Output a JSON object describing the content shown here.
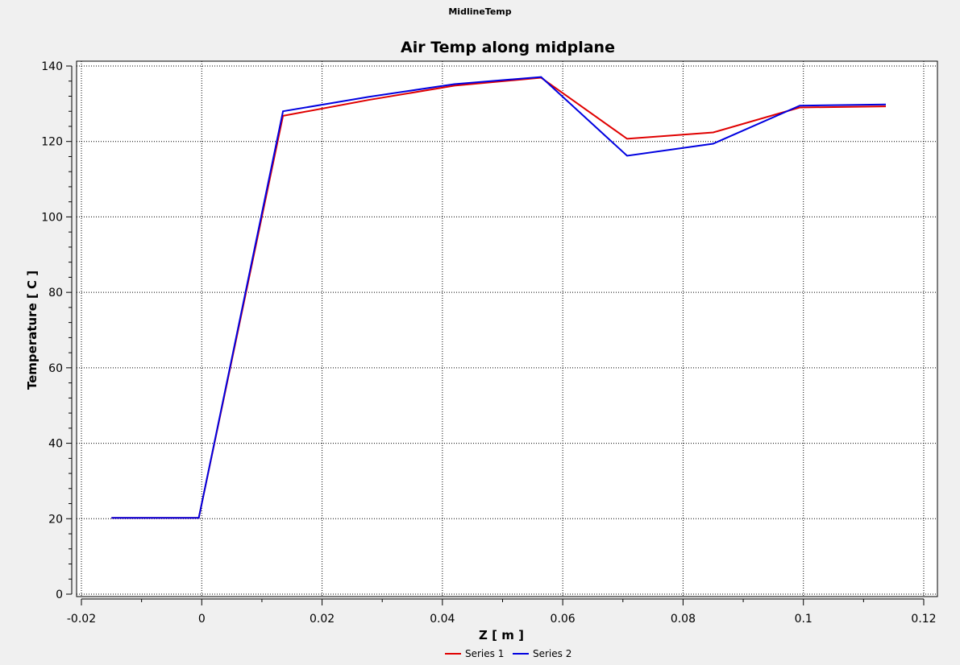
{
  "window": {
    "title": "MidlineTemp"
  },
  "chart_data": {
    "type": "line",
    "title": "Air Temp along midplane",
    "xlabel": "Z [ m ]",
    "ylabel": "Temperature [ C ]",
    "xlim": [
      -0.02,
      0.12
    ],
    "ylim": [
      0,
      140
    ],
    "xticks": [
      -0.02,
      0,
      0.02,
      0.04,
      0.06,
      0.08,
      0.1,
      0.12
    ],
    "xtick_labels": [
      "-0.02",
      "0",
      "0.02",
      "0.04",
      "0.06",
      "0.08",
      "0.1",
      "0.12"
    ],
    "yticks": [
      0,
      20,
      40,
      60,
      80,
      100,
      120,
      140
    ],
    "ytick_labels": [
      "0",
      "20",
      "40",
      "60",
      "80",
      "100",
      "120",
      "140"
    ],
    "grid": true,
    "legend_position": "bottom-center",
    "series": [
      {
        "name": "Series 1",
        "color": "#e00000",
        "x": [
          -0.015,
          -0.0005,
          0.0135,
          0.0277,
          0.042,
          0.0564,
          0.0707,
          0.085,
          0.0994,
          0.1137
        ],
        "y": [
          20.2,
          20.2,
          126.8,
          131.0,
          134.8,
          136.9,
          120.7,
          122.4,
          129.0,
          129.3
        ]
      },
      {
        "name": "Series 2",
        "color": "#0000e0",
        "x": [
          -0.015,
          -0.0005,
          0.0135,
          0.0277,
          0.042,
          0.0564,
          0.0707,
          0.085,
          0.0994,
          0.1137
        ],
        "y": [
          20.2,
          20.2,
          128.0,
          131.8,
          135.2,
          137.1,
          116.2,
          119.4,
          129.5,
          129.8
        ]
      }
    ]
  }
}
